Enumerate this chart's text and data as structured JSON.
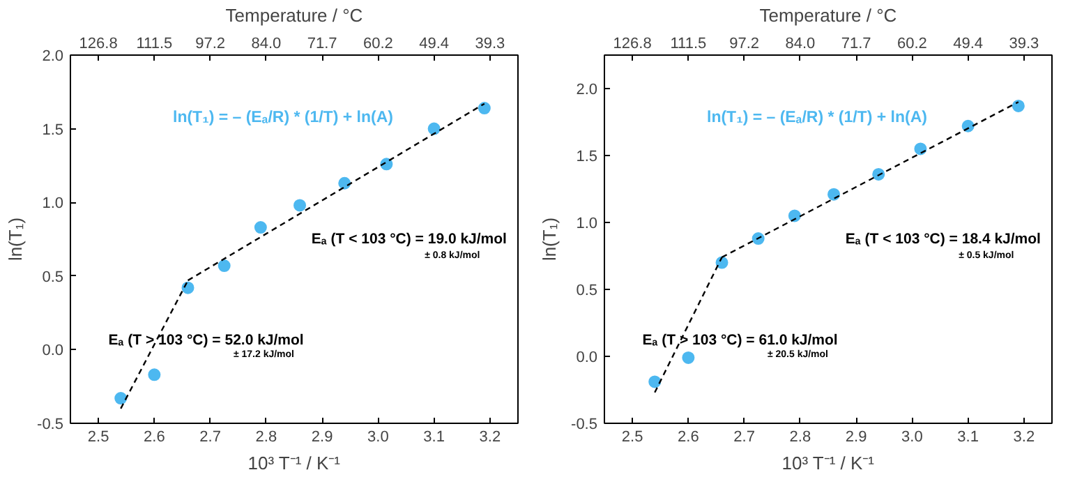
{
  "chart_data": [
    {
      "type": "scatter",
      "xlabel": "10³ T⁻¹ / K⁻¹",
      "ylabel": "ln(T₁)",
      "x2label": "Temperature / °C",
      "grid": false,
      "xlim": [
        2.45,
        3.25
      ],
      "xticks": [
        2.5,
        2.6,
        2.7,
        2.8,
        2.9,
        {
          "value": 3,
          "label": "3.0"
        },
        3.1,
        3.2
      ],
      "ylim": [
        -0.5,
        2.0
      ],
      "yticks": [
        -0.5,
        {
          "value": 0,
          "label": "0.0"
        },
        0.5,
        {
          "value": 1,
          "label": "1.0"
        },
        1.5,
        {
          "value": 2,
          "label": "2.0"
        }
      ],
      "x": [
        2.54,
        2.6,
        2.66,
        2.725,
        2.79,
        2.86,
        2.94,
        3.015,
        3.1,
        3.19
      ],
      "series": [
        {
          "color": "#4db8f0",
          "marker": "circle",
          "values": [
            -0.33,
            -0.17,
            0.42,
            0.57,
            0.83,
            0.98,
            1.13,
            1.26,
            1.5,
            1.64
          ]
        },
        {
          "type": "line",
          "line_style": "dashed",
          "color": "#000000",
          "x": [
            2.54,
            2.66
          ],
          "values": [
            -0.4,
            0.47
          ]
        },
        {
          "type": "line",
          "line_style": "dashed",
          "color": "#000000",
          "x": [
            2.66,
            3.19
          ],
          "values": [
            0.47,
            1.67
          ]
        }
      ],
      "annotations": [
        "ln(T₁) = – (Eₐ/R) * (1/T) + ln(A)",
        "Eₐ (T < 103 °C) = 19.0 kJ/mol",
        "± 0.8 kJ/mol",
        "Eₐ (T > 103 °C) = 52.0 kJ/mol",
        "± 17.2 kJ/mol",
        "126.8",
        "111.5",
        "97.2",
        "84.0",
        "71.7",
        "60.2",
        "49.4",
        "39.3"
      ]
    },
    {
      "type": "scatter",
      "xlabel": "10³ T⁻¹ / K⁻¹",
      "ylabel": "ln(T₁)",
      "x2label": "Temperature / °C",
      "grid": false,
      "xlim": [
        2.45,
        3.25
      ],
      "xticks": [
        2.5,
        2.6,
        2.7,
        2.8,
        2.9,
        {
          "value": 3,
          "label": "3.0"
        },
        3.1,
        3.2
      ],
      "ylim": [
        -0.5,
        2.25
      ],
      "yticks": [
        -0.5,
        {
          "value": 0,
          "label": "0.0"
        },
        0.5,
        {
          "value": 1,
          "label": "1.0"
        },
        1.5,
        {
          "value": 2,
          "label": "2.0"
        }
      ],
      "x": [
        2.54,
        2.6,
        2.66,
        2.725,
        2.79,
        2.86,
        2.94,
        3.015,
        3.1,
        3.19
      ],
      "series": [
        {
          "color": "#4db8f0",
          "marker": "circle",
          "values": [
            -0.19,
            -0.01,
            0.7,
            0.88,
            1.05,
            1.21,
            1.36,
            1.55,
            1.72,
            1.87
          ]
        },
        {
          "type": "line",
          "line_style": "dashed",
          "color": "#000000",
          "x": [
            2.54,
            2.66
          ],
          "values": [
            -0.27,
            0.74
          ]
        },
        {
          "type": "line",
          "line_style": "dashed",
          "color": "#000000",
          "x": [
            2.66,
            3.19
          ],
          "values": [
            0.74,
            1.9
          ]
        }
      ],
      "annotations": [
        "ln(T₁) = – (Eₐ/R) * (1/T) + ln(A)",
        "Eₐ (T < 103 °C) = 18.4 kJ/mol",
        "± 0.5 kJ/mol",
        "Eₐ (T > 103 °C) = 61.0 kJ/mol",
        "± 20.5 kJ/mol",
        "126.8",
        "111.5",
        "97.2",
        "84.0",
        "71.7",
        "60.2",
        "49.4",
        "39.3"
      ]
    }
  ]
}
